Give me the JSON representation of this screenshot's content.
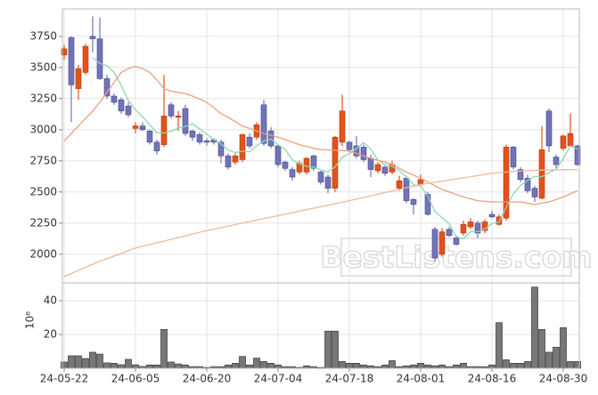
{
  "chart_data": [
    {
      "type": "candlestick",
      "watermark": "BestListens.com",
      "up_color": "#e4521b",
      "down_color": "#7274b8",
      "ylim": [
        1770,
        3970
      ],
      "yticks": [
        2000,
        2250,
        2500,
        2750,
        3000,
        3250,
        3500,
        3750
      ],
      "grid": true,
      "open": [
        3600,
        3740,
        3330,
        3460,
        3750,
        3730,
        3410,
        3270,
        3240,
        3190,
        3010,
        3030,
        2990,
        2900,
        2880,
        3200,
        3100,
        3170,
        2990,
        2960,
        2910,
        2920,
        2900,
        2790,
        2740,
        2760,
        2940,
        2940,
        3200,
        2990,
        2870,
        2740,
        2680,
        2660,
        2660,
        2790,
        2660,
        2620,
        2530,
        2900,
        2900,
        2870,
        2860,
        2770,
        2670,
        2700,
        2660,
        2530,
        2610,
        2440,
        2560,
        2480,
        2200,
        2000,
        2200,
        2130,
        2170,
        2220,
        2250,
        2190,
        2320,
        2240,
        2290,
        2860,
        2680,
        2610,
        2530,
        2450,
        3150,
        2780,
        2850,
        2870,
        2870
      ],
      "high": [
        3680,
        3750,
        3520,
        3690,
        3910,
        3900,
        3440,
        3290,
        3260,
        3220,
        3060,
        3060,
        3000,
        2920,
        3440,
        3220,
        3150,
        3200,
        3000,
        2980,
        2930,
        2930,
        2920,
        2810,
        2810,
        2970,
        2970,
        3060,
        3240,
        3020,
        2880,
        2750,
        2700,
        2750,
        2780,
        2800,
        2670,
        2640,
        2950,
        3280,
        2910,
        2950,
        2880,
        2800,
        2740,
        2710,
        2750,
        2630,
        2630,
        2450,
        2640,
        2500,
        2220,
        2210,
        2220,
        2150,
        2270,
        2290,
        2270,
        2280,
        2350,
        2320,
        2880,
        2870,
        2700,
        2640,
        2550,
        3030,
        3170,
        2800,
        2960,
        3130,
        2880
      ],
      "low": [
        3560,
        3060,
        3240,
        3440,
        3620,
        3400,
        3250,
        3200,
        3130,
        3100,
        2970,
        2990,
        2880,
        2800,
        2860,
        3090,
        2990,
        2950,
        2910,
        2880,
        2870,
        2880,
        2730,
        2680,
        2720,
        2740,
        2850,
        2920,
        2870,
        2850,
        2700,
        2670,
        2590,
        2640,
        2640,
        2670,
        2560,
        2490,
        2500,
        2870,
        2820,
        2770,
        2740,
        2620,
        2650,
        2630,
        2640,
        2510,
        2410,
        2320,
        2550,
        2310,
        1940,
        1980,
        2140,
        2070,
        2150,
        2200,
        2130,
        2170,
        2290,
        2230,
        2270,
        2680,
        2580,
        2490,
        2420,
        2440,
        2820,
        2690,
        2830,
        2860,
        2710
      ],
      "close": [
        3650,
        3360,
        3490,
        3670,
        3730,
        3410,
        3270,
        3220,
        3150,
        3120,
        3030,
        3000,
        2900,
        2830,
        3110,
        3110,
        3110,
        2970,
        2940,
        2900,
        2900,
        2900,
        2790,
        2700,
        2790,
        2960,
        2870,
        3040,
        2890,
        2870,
        2720,
        2690,
        2620,
        2730,
        2770,
        2690,
        2580,
        2530,
        2940,
        3150,
        2840,
        2790,
        2760,
        2680,
        2720,
        2650,
        2720,
        2590,
        2430,
        2400,
        2600,
        2320,
        1970,
        2180,
        2150,
        2080,
        2240,
        2260,
        2170,
        2260,
        2300,
        2300,
        2860,
        2700,
        2600,
        2510,
        2460,
        2840,
        2870,
        2720,
        2950,
        2970,
        2720
      ],
      "series": [
        {
          "color": "#8fd6b4",
          "values": [
            null,
            null,
            null,
            null,
            3580,
            3532,
            3514,
            3460,
            3356,
            3234,
            3158,
            3104,
            3040,
            2976,
            2974,
            2990,
            3012,
            3026,
            3048,
            3006,
            2964,
            2922,
            2886,
            2838,
            2816,
            2828,
            2822,
            2872,
            2910,
            2926,
            2878,
            2842,
            2758,
            2726,
            2706,
            2700,
            2678,
            2660,
            2702,
            2778,
            2808,
            2850,
            2896,
            2844,
            2758,
            2720,
            2706,
            2672,
            2622,
            2558,
            2548,
            2468,
            2344,
            2294,
            2244,
            2140,
            2124,
            2182,
            2180,
            2202,
            2246,
            2258,
            2378,
            2484,
            2552,
            2594,
            2626,
            2622,
            2656,
            2680,
            2768,
            2870,
            2846
          ]
        },
        {
          "color": "#eaa17f",
          "values": [
            2910,
            2970,
            3030,
            3090,
            3150,
            3220,
            3300,
            3380,
            3460,
            3490,
            3510,
            3490,
            3460,
            3400,
            3330,
            3310,
            3300,
            3290,
            3270,
            3245,
            3220,
            3175,
            3130,
            3100,
            3065,
            3030,
            3010,
            2990,
            2970,
            2955,
            2940,
            2920,
            2900,
            2880,
            2865,
            2850,
            2840,
            2838,
            2835,
            2832,
            2830,
            2810,
            2790,
            2770,
            2755,
            2740,
            2720,
            2690,
            2660,
            2635,
            2610,
            2580,
            2550,
            2520,
            2500,
            2480,
            2460,
            2445,
            2430,
            2425,
            2420,
            2420,
            2420,
            2420,
            2420,
            2410,
            2400,
            2410,
            2420,
            2440,
            2460,
            2485,
            2510
          ]
        },
        {
          "color": "#f0b999",
          "values": [
            1820,
            1845,
            1870,
            1895,
            1920,
            1945,
            1965,
            1985,
            2005,
            2030,
            2050,
            2064,
            2078,
            2092,
            2106,
            2120,
            2134,
            2148,
            2162,
            2176,
            2190,
            2202,
            2214,
            2226,
            2238,
            2250,
            2262,
            2274,
            2286,
            2298,
            2310,
            2322,
            2334,
            2346,
            2358,
            2370,
            2382,
            2394,
            2406,
            2418,
            2430,
            2443,
            2456,
            2469,
            2482,
            2495,
            2508,
            2521,
            2534,
            2547,
            2560,
            2569,
            2578,
            2587,
            2596,
            2605,
            2614,
            2623,
            2632,
            2641,
            2650,
            2655,
            2660,
            2665,
            2668,
            2671,
            2673,
            2675,
            2677,
            2678,
            2679,
            2680,
            2680
          ]
        }
      ]
    },
    {
      "type": "bar",
      "y_label": "10⁶",
      "color": "#777777",
      "ylim": [
        0,
        50.5
      ],
      "yticks": [
        20,
        40
      ],
      "grid": true,
      "categories": [
        "24-05-22",
        null,
        null,
        null,
        null,
        null,
        null,
        null,
        null,
        null,
        "24-06-05",
        null,
        null,
        null,
        null,
        null,
        null,
        null,
        null,
        null,
        "24-06-20",
        null,
        null,
        null,
        null,
        null,
        null,
        null,
        null,
        null,
        "24-07-04",
        null,
        null,
        null,
        null,
        null,
        null,
        null,
        null,
        null,
        "24-07-18",
        null,
        null,
        null,
        null,
        null,
        null,
        null,
        null,
        null,
        "24-08-01",
        null,
        null,
        null,
        null,
        null,
        null,
        null,
        null,
        null,
        "24-08-16",
        null,
        null,
        null,
        null,
        null,
        null,
        null,
        null,
        null,
        "24-08-30",
        null,
        null
      ],
      "values": [
        3.7,
        7.4,
        7.4,
        5.8,
        9.5,
        8.4,
        3.2,
        3,
        2.1,
        5.3,
        2.1,
        1.1,
        2,
        2,
        23,
        3.7,
        2.6,
        2,
        1,
        1,
        0.5,
        1,
        1,
        2,
        3,
        7,
        2,
        6,
        4,
        3,
        2,
        1,
        1,
        0.5,
        1.5,
        1,
        0.5,
        22,
        22,
        4,
        3,
        3,
        2,
        1.5,
        1,
        2,
        4.5,
        1,
        1.5,
        2,
        3,
        2,
        1.5,
        2,
        1,
        2,
        3,
        1,
        1,
        1,
        2,
        27,
        5,
        3,
        3,
        4,
        48,
        23,
        9.5,
        12.5,
        24,
        4,
        4
      ]
    }
  ]
}
